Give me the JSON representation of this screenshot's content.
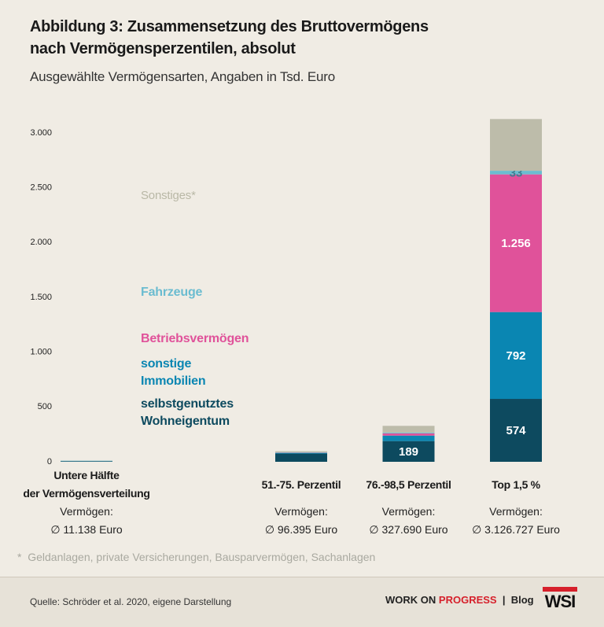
{
  "chart_data": {
    "type": "stacked_bar",
    "title": "Abbildung 3: Zusammensetzung des Bruttovermögens\nnach Vermögensperzentilen, absolut",
    "subtitle": "Ausgewählte Vermögensarten, Angaben in Tsd. Euro",
    "categories": [
      "Untere Hälfte\nder Vermögensverteilung",
      null,
      "51.-75. Perzentil",
      "76.-98,5 Perzentil",
      "Top 1,5 %"
    ],
    "wealth_caption": "Vermögen:",
    "wealth_labels": [
      "∅ 11.138 Euro",
      null,
      "∅ 96.395 Euro",
      "∅ 327.690 Euro",
      "∅ 3.126.727 Euro"
    ],
    "series": [
      {
        "name": "selbstgenutztes\nWohneigentum",
        "color": "#0d4a5f",
        "label_color": "#ffffff",
        "values": [
          5,
          null,
          75,
          189,
          574
        ],
        "value_labels": [
          null,
          null,
          null,
          "189",
          "574"
        ]
      },
      {
        "name": "sonstige\nImmobilien",
        "color": "#0a86b2",
        "label_color": "#ffffff",
        "values": [
          1,
          null,
          5,
          50,
          792
        ],
        "value_labels": [
          null,
          null,
          null,
          null,
          "792"
        ]
      },
      {
        "name": "Betriebsvermögen",
        "color": "#e0529a",
        "label_color": "#ffffff",
        "values": [
          0,
          null,
          2,
          20,
          1256
        ],
        "value_labels": [
          null,
          null,
          null,
          null,
          "1.256"
        ]
      },
      {
        "name": "Fahrzeuge",
        "color": "#6bbcd0",
        "label_color": "#3d7f92",
        "values": [
          4,
          null,
          4,
          8,
          33
        ],
        "value_labels": [
          null,
          null,
          null,
          null,
          "33"
        ]
      },
      {
        "name": "Sonstiges*",
        "color": "#bdbcaa",
        "label_color": "#ffffff",
        "values": [
          1,
          null,
          10,
          61,
          472
        ],
        "value_labels": [
          null,
          null,
          null,
          null,
          null
        ]
      }
    ],
    "ylim": [
      0,
      3000
    ],
    "yticks": [
      0,
      500,
      {
        "value": 1000,
        "label": "1.000"
      },
      {
        "value": 1500,
        "label": "1.500"
      },
      {
        "value": 2000,
        "label": "2.000"
      },
      {
        "value": 2500,
        "label": "2.500"
      },
      {
        "value": 3000,
        "label": "3.000"
      }
    ],
    "grid": false,
    "footnote": "*  Geldanlagen, private Versicherungen, Bausparvermögen, Sachanlagen"
  },
  "footer": {
    "source": "Quelle: Schröder et al. 2020, eigene Darstellung",
    "brand_1": "WORK ON",
    "brand_2": "PROGRESS",
    "separator": "|",
    "blog": "Blog",
    "logo": "WSI"
  }
}
